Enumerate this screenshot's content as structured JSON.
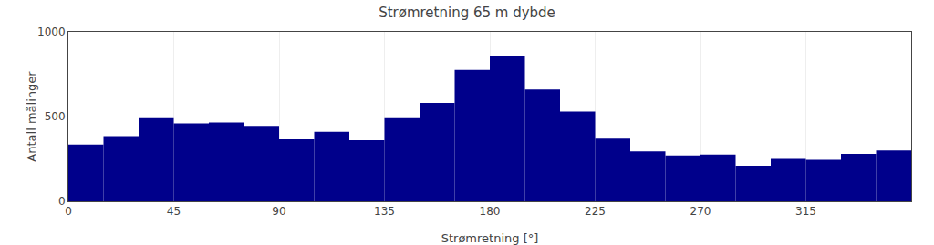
{
  "chart_data": {
    "type": "histogram",
    "title": "Strømretning 65 m dybde",
    "xlabel": "Strømretning [°]",
    "ylabel": "Antall målinger",
    "bins": [
      0,
      15,
      30,
      45,
      60,
      75,
      90,
      105,
      120,
      135,
      150,
      165,
      180,
      195,
      210,
      225,
      240,
      255,
      270,
      285,
      300,
      315,
      330,
      345,
      360
    ],
    "values": [
      335,
      385,
      490,
      460,
      465,
      445,
      365,
      410,
      360,
      490,
      580,
      775,
      860,
      660,
      530,
      370,
      295,
      270,
      275,
      210,
      250,
      245,
      280,
      300
    ],
    "color": "#00008B",
    "xlim": [
      0,
      360
    ],
    "xticks": [
      0,
      45,
      90,
      135,
      180,
      225,
      270,
      315
    ],
    "ylim": [
      0,
      1000
    ],
    "yticks": [
      0,
      500,
      1000
    ],
    "grid": true
  }
}
